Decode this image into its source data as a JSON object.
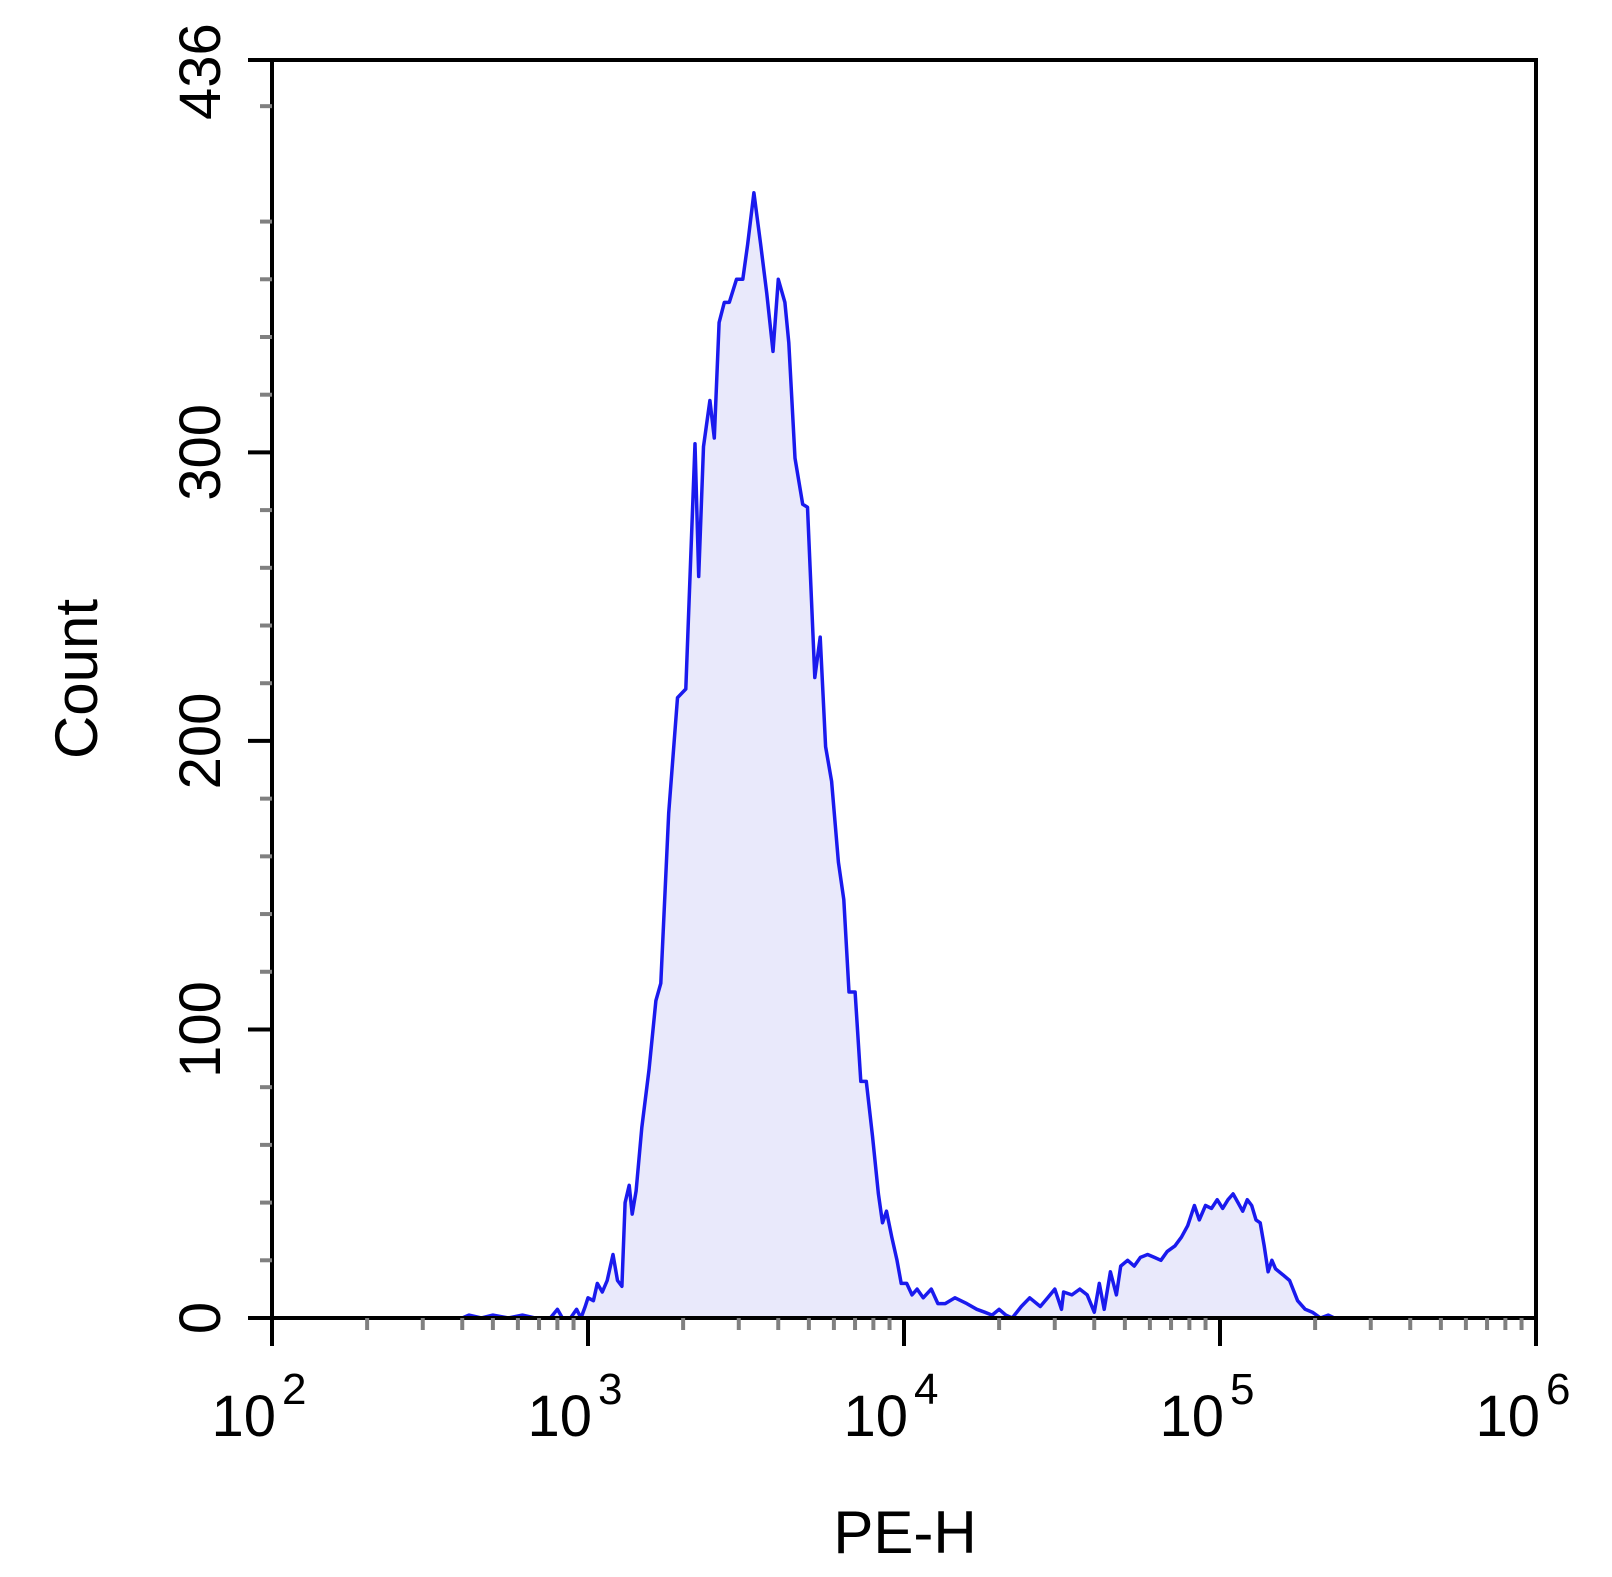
{
  "chart_data": {
    "type": "area",
    "title": "",
    "xlabel": "PE-H",
    "ylabel": "Count",
    "x_scale": "log",
    "xlim": [
      100,
      1000000
    ],
    "ylim": [
      0,
      436
    ],
    "x_ticks": [
      {
        "value": 100,
        "base": "10",
        "exp": "2"
      },
      {
        "value": 1000,
        "base": "10",
        "exp": "3"
      },
      {
        "value": 10000,
        "base": "10",
        "exp": "4"
      },
      {
        "value": 100000,
        "base": "10",
        "exp": "5"
      },
      {
        "value": 1000000,
        "base": "10",
        "exp": "6"
      }
    ],
    "y_ticks": [
      {
        "value": 0,
        "label": "0"
      },
      {
        "value": 100,
        "label": "100"
      },
      {
        "value": 200,
        "label": "200"
      },
      {
        "value": 300,
        "label": "300"
      },
      {
        "value": 436,
        "label": "436"
      }
    ],
    "grid": false,
    "legend": "none",
    "colors": {
      "line": "#1a1aee",
      "fill": "#e9e9fb",
      "axis": "#000000",
      "minor_tick": "#808080"
    },
    "series": [
      {
        "points": [
          [
            400,
            0
          ],
          [
            420,
            1
          ],
          [
            460,
            0
          ],
          [
            500,
            1
          ],
          [
            560,
            0
          ],
          [
            620,
            1
          ],
          [
            680,
            0
          ],
          [
            760,
            0
          ],
          [
            800,
            3
          ],
          [
            830,
            0
          ],
          [
            880,
            0
          ],
          [
            920,
            3
          ],
          [
            950,
            0
          ],
          [
            980,
            4
          ],
          [
            1000,
            7
          ],
          [
            1040,
            6
          ],
          [
            1070,
            12
          ],
          [
            1110,
            9
          ],
          [
            1150,
            13
          ],
          [
            1200,
            22
          ],
          [
            1240,
            13
          ],
          [
            1280,
            11
          ],
          [
            1310,
            40
          ],
          [
            1350,
            46
          ],
          [
            1380,
            36
          ],
          [
            1420,
            44
          ],
          [
            1480,
            66
          ],
          [
            1560,
            86
          ],
          [
            1640,
            110
          ],
          [
            1700,
            116
          ],
          [
            1800,
            175
          ],
          [
            1920,
            215
          ],
          [
            2040,
            218
          ],
          [
            2180,
            303
          ],
          [
            2240,
            257
          ],
          [
            2320,
            302
          ],
          [
            2430,
            318
          ],
          [
            2510,
            305
          ],
          [
            2600,
            345
          ],
          [
            2700,
            352
          ],
          [
            2800,
            352
          ],
          [
            2950,
            360
          ],
          [
            3090,
            360
          ],
          [
            3200,
            372
          ],
          [
            3350,
            390
          ],
          [
            3520,
            372
          ],
          [
            3680,
            355
          ],
          [
            3850,
            335
          ],
          [
            4000,
            360
          ],
          [
            4200,
            352
          ],
          [
            4320,
            338
          ],
          [
            4520,
            298
          ],
          [
            4780,
            282
          ],
          [
            4950,
            281
          ],
          [
            5220,
            222
          ],
          [
            5430,
            236
          ],
          [
            5650,
            198
          ],
          [
            5900,
            186
          ],
          [
            6200,
            158
          ],
          [
            6450,
            145
          ],
          [
            6700,
            113
          ],
          [
            7000,
            113
          ],
          [
            7300,
            82
          ],
          [
            7600,
            82
          ],
          [
            7950,
            63
          ],
          [
            8300,
            43
          ],
          [
            8550,
            33
          ],
          [
            8800,
            37
          ],
          [
            9150,
            28
          ],
          [
            9500,
            20
          ],
          [
            9800,
            12
          ],
          [
            10200,
            12
          ],
          [
            10600,
            8
          ],
          [
            11000,
            10
          ],
          [
            11500,
            7
          ],
          [
            12200,
            10
          ],
          [
            12800,
            5
          ],
          [
            13500,
            5
          ],
          [
            14500,
            7
          ],
          [
            15800,
            5
          ],
          [
            17000,
            3
          ],
          [
            18000,
            2
          ],
          [
            19000,
            1
          ],
          [
            20000,
            3
          ],
          [
            21000,
            1
          ],
          [
            22000,
            0
          ],
          [
            23500,
            4
          ],
          [
            25000,
            7
          ],
          [
            27000,
            4
          ],
          [
            28500,
            7
          ],
          [
            30000,
            10
          ],
          [
            31500,
            3
          ],
          [
            32000,
            9
          ],
          [
            34000,
            8
          ],
          [
            36000,
            10
          ],
          [
            38000,
            8
          ],
          [
            40000,
            2
          ],
          [
            41500,
            12
          ],
          [
            43000,
            3
          ],
          [
            45000,
            16
          ],
          [
            47000,
            8
          ],
          [
            48500,
            18
          ],
          [
            51000,
            20
          ],
          [
            53500,
            18
          ],
          [
            56000,
            21
          ],
          [
            59000,
            22
          ],
          [
            62000,
            21
          ],
          [
            65000,
            20
          ],
          [
            68000,
            23
          ],
          [
            72000,
            25
          ],
          [
            75500,
            28
          ],
          [
            79000,
            32
          ],
          [
            83000,
            39
          ],
          [
            86000,
            34
          ],
          [
            90000,
            39
          ],
          [
            94000,
            38
          ],
          [
            98000,
            41
          ],
          [
            102000,
            38
          ],
          [
            106000,
            41
          ],
          [
            110000,
            43
          ],
          [
            114000,
            40
          ],
          [
            118000,
            37
          ],
          [
            122000,
            41
          ],
          [
            126000,
            39
          ],
          [
            130000,
            34
          ],
          [
            134000,
            33
          ],
          [
            138000,
            25
          ],
          [
            142000,
            16
          ],
          [
            146000,
            20
          ],
          [
            150000,
            17
          ],
          [
            158000,
            15
          ],
          [
            166000,
            13
          ],
          [
            176000,
            6
          ],
          [
            186000,
            3
          ],
          [
            196000,
            2
          ],
          [
            208000,
            0
          ],
          [
            220000,
            1
          ],
          [
            230000,
            0
          ],
          [
            250000,
            0
          ],
          [
            270000,
            0
          ]
        ]
      }
    ]
  }
}
